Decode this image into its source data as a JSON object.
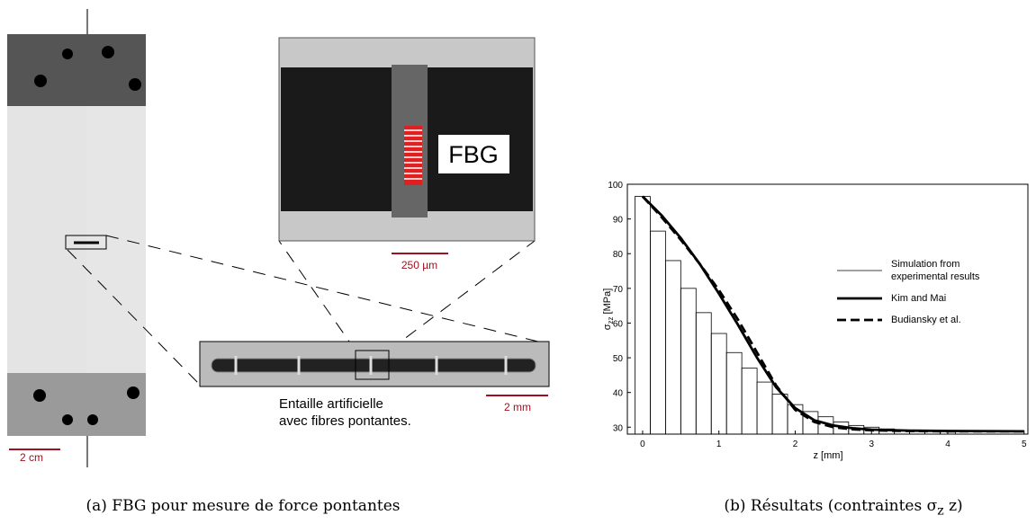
{
  "panel_a": {
    "fbg_label": "FBG",
    "scale_inset": "250 µm",
    "notch_line1": "Entaille artificielle",
    "notch_line2": "avec fibres pontantes.",
    "scale_notch": "2 mm",
    "scale_specimen": "2 cm",
    "caption": "(a) FBG pour mesure de force pontantes"
  },
  "chart_data": {
    "type": "histogram",
    "xlabel": "z [mm]",
    "ylabel": {
      "symbol": "σ",
      "subscript": "zz",
      "unit": "[MPa]"
    },
    "xlim": [
      -0.2,
      5.05
    ],
    "xticks": [
      0,
      1,
      2,
      3,
      4,
      5
    ],
    "ylim": [
      28,
      100
    ],
    "yticks": [
      30,
      40,
      50,
      60,
      70,
      80,
      90,
      100
    ],
    "histogram": {
      "name": "Simulation from experimental results",
      "color": "#000000",
      "bins": [
        -0.1,
        0.1,
        0.3,
        0.5,
        0.7,
        0.9,
        1.1,
        1.3,
        1.5,
        1.7,
        1.9,
        2.1,
        2.3,
        2.5,
        2.7,
        2.9,
        3.1,
        3.3,
        3.5,
        3.7,
        3.9,
        4.1
      ],
      "values": [
        96.5,
        86.5,
        78,
        70,
        63,
        57,
        51.5,
        47,
        43,
        39.5,
        36.5,
        34.5,
        33,
        31.5,
        30.5,
        30,
        29.5,
        29.2,
        29,
        29,
        29
      ]
    },
    "x": [
      0,
      0.25,
      0.5,
      0.75,
      1,
      1.25,
      1.5,
      1.75,
      2,
      2.25,
      2.5,
      2.75,
      3,
      3.5,
      4,
      5
    ],
    "series": [
      {
        "name": "Kim and Mai",
        "color": "#000000",
        "line_style": "solid",
        "values": [
          96.5,
          91,
          84.5,
          77,
          68.5,
          59.5,
          50,
          41.5,
          35.5,
          32,
          30.5,
          29.7,
          29.3,
          29,
          28.9,
          28.8
        ]
      },
      {
        "name": "Budiansky et al.",
        "color": "#000000",
        "line_style": "dashed",
        "values": [
          96.5,
          90.5,
          84,
          77,
          69.5,
          61,
          51.5,
          42,
          35,
          31.5,
          30,
          29.4,
          29.1,
          28.9,
          28.8,
          28.8
        ]
      }
    ],
    "caption": {
      "text": "(b) Résultats (contraintes σ",
      "subscript": "z",
      "end": " z)"
    }
  }
}
